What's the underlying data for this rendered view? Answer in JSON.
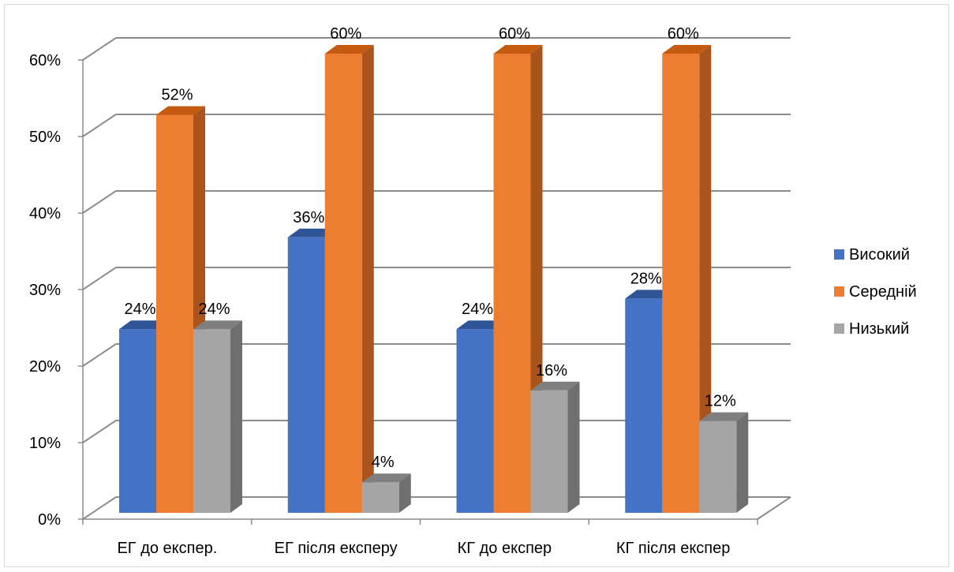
{
  "chart_data": {
    "type": "bar",
    "title": "",
    "xlabel": "",
    "ylabel": "",
    "categories": [
      "ЕГ до експер.",
      "ЕГ  після експеру",
      "КГ до експер",
      "КГ після експер"
    ],
    "series": [
      {
        "name": "Високий",
        "values": [
          24,
          36,
          24,
          28
        ],
        "labels": [
          "24%",
          "36%",
          "24%",
          "28%"
        ],
        "color": "#4472C4",
        "side_color": "#2F5597",
        "top_color": "#2F5597"
      },
      {
        "name": "Середній",
        "values": [
          52,
          60,
          60,
          60
        ],
        "labels": [
          "52%",
          "60%",
          "60%",
          "60%"
        ],
        "color": "#ED7D31",
        "side_color": "#A9531D",
        "top_color": "#C55A11"
      },
      {
        "name": "Низький",
        "values": [
          24,
          4,
          16,
          12
        ],
        "labels": [
          "24%",
          "4%",
          "16%",
          "12%"
        ],
        "color": "#A5A5A5",
        "side_color": "#6F6F6F",
        "top_color": "#7F7F7F"
      }
    ],
    "ylim": [
      0,
      60
    ],
    "yticks": [
      0,
      10,
      20,
      30,
      40,
      50,
      60
    ],
    "ytick_labels": [
      "0%",
      "10%",
      "20%",
      "30%",
      "40%",
      "50%",
      "60%"
    ],
    "grid": true,
    "legend": "right",
    "style": "3d-clustered-column"
  }
}
